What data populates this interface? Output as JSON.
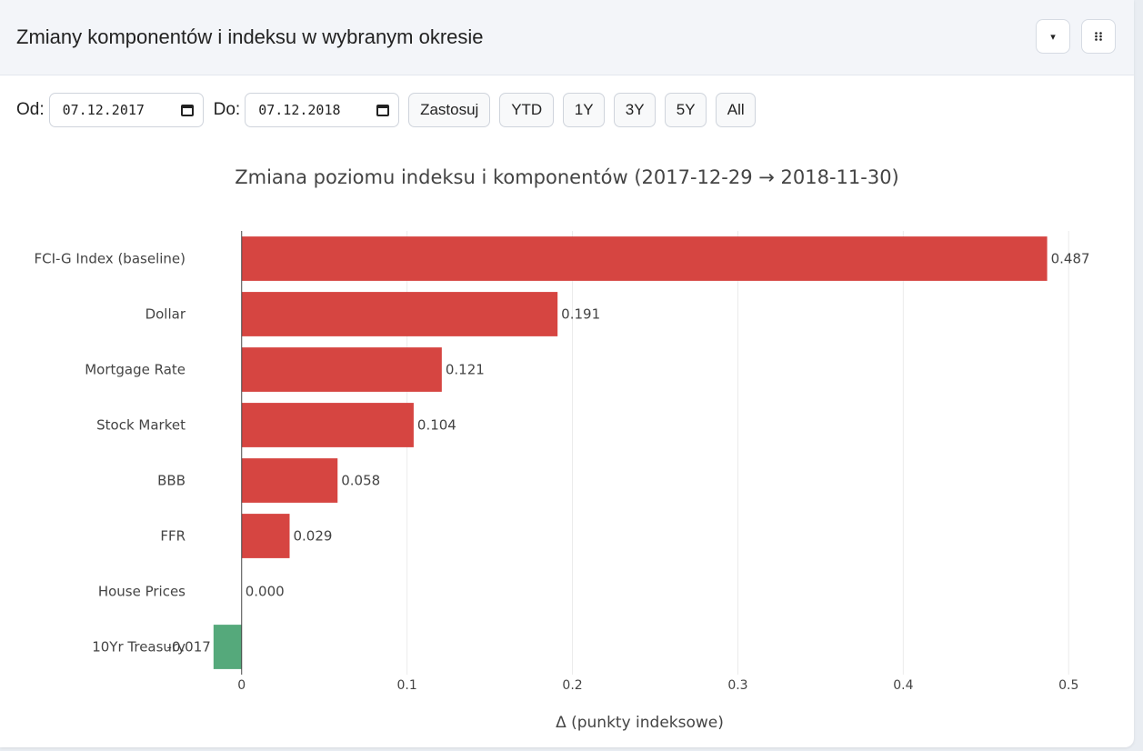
{
  "header": {
    "title": "Zmiany komponentów i indeksu w wybranym okresie",
    "dropdown_icon": "caret-down-icon",
    "drag_icon": "grip-icon"
  },
  "controls": {
    "from_label": "Od:",
    "from_value": "07.12.2017",
    "to_label": "Do:",
    "to_value": "07.12.2018",
    "apply_label": "Zastosuj",
    "range_buttons": [
      "YTD",
      "1Y",
      "3Y",
      "5Y",
      "All"
    ]
  },
  "chart_data": {
    "type": "bar",
    "orientation": "horizontal",
    "title": "Zmiana poziomu indeksu i komponentów (2017-12-29 → 2018-11-30)",
    "xlabel": "Δ (punkty indeksowe)",
    "ylabel": "",
    "categories": [
      "FCI-G Index (baseline)",
      "Dollar",
      "Mortgage Rate",
      "Stock Market",
      "BBB",
      "FFR",
      "House Prices",
      "10Yr Treasury"
    ],
    "values": [
      0.487,
      0.191,
      0.121,
      0.104,
      0.058,
      0.029,
      0.0,
      -0.017
    ],
    "value_labels": [
      "0.487",
      "0.191",
      "0.121",
      "0.104",
      "0.058",
      "0.029",
      "0.000",
      "-0.017"
    ],
    "xlim": [
      -0.018,
      0.518
    ],
    "xticks": [
      0,
      0.1,
      0.2,
      0.3,
      0.4,
      0.5
    ],
    "xtick_labels": [
      "0",
      "0.1",
      "0.2",
      "0.3",
      "0.4",
      "0.5"
    ],
    "grid": true,
    "colors": {
      "positive": "#d64541",
      "negative": "#55a97b"
    }
  }
}
